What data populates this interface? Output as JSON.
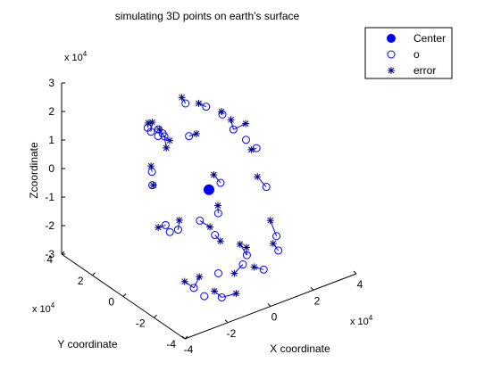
{
  "chart_data": {
    "type": "scatter",
    "projection": "3d",
    "title": "simulating 3D points on earth's surface",
    "xlabel": "X coordinate",
    "ylabel": "Y coordinate",
    "zlabel": "Zcoordinate",
    "axis_multiplier": {
      "x": "x 10",
      "y": "x 10",
      "z": "x 10",
      "exponent": "4"
    },
    "xticks": [
      "-4",
      "-2",
      "0",
      "2",
      "4"
    ],
    "yticks": [
      "4",
      "2",
      "0",
      "-2",
      "-4"
    ],
    "zticks": [
      "3",
      "2",
      "1",
      "0",
      "-1",
      "-2",
      "-3"
    ],
    "xlim": [
      -4,
      4
    ],
    "ylim": [
      -4,
      4
    ],
    "zlim": [
      -3,
      3
    ],
    "legend": {
      "placement": "top-right",
      "entries": [
        {
          "label": "Center",
          "marker": "filled-circle"
        },
        {
          "label": "o",
          "marker": "open-circle"
        },
        {
          "label": "error",
          "marker": "asterisk"
        }
      ]
    },
    "marker_color": "#0000ff",
    "error_color": "#000080",
    "series": [
      {
        "name": "Center",
        "points": [
          [
            0.0,
            0.0,
            -0.4
          ]
        ]
      },
      {
        "name": "o",
        "points": [
          [
            -2.0,
            1.2,
            1.9
          ],
          [
            -1.7,
            1.4,
            1.6
          ],
          [
            -1.3,
            1.2,
            1.5
          ],
          [
            -1.0,
            1.5,
            1.2
          ],
          [
            -2.3,
            0.5,
            0.7
          ],
          [
            -2.5,
            0.2,
            0.4
          ],
          [
            -1.8,
            0.8,
            1.7
          ],
          [
            -2.6,
            -0.8,
            -0.6
          ],
          [
            -2.4,
            -0.8,
            -0.9
          ],
          [
            -1.8,
            -0.5,
            -1.1
          ],
          [
            -1.0,
            -0.8,
            -0.9
          ],
          [
            -0.8,
            -1.5,
            -1.2
          ],
          [
            -2.0,
            -1.8,
            -2.6
          ],
          [
            -1.8,
            -2.2,
            -2.8
          ],
          [
            -1.2,
            -2.5,
            -2.9
          ],
          [
            -1.0,
            -2.0,
            -2.3
          ],
          [
            0.0,
            -2.2,
            -2.2
          ],
          [
            0.4,
            -1.9,
            -2.1
          ],
          [
            0.9,
            -2.3,
            -2.6
          ],
          [
            0.2,
            1.8,
            1.9
          ],
          [
            0.8,
            1.3,
            1.8
          ],
          [
            1.2,
            0.8,
            1.6
          ],
          [
            1.5,
            0.5,
            1.1
          ],
          [
            1.8,
            0.1,
            0.8
          ],
          [
            2.0,
            -0.3,
            0.6
          ],
          [
            2.1,
            -0.8,
            -0.6
          ],
          [
            2.0,
            -1.6,
            -2.0
          ],
          [
            1.8,
            -2.0,
            -2.3
          ],
          [
            0.0,
            -0.6,
            -1.0
          ],
          [
            0.9,
            0.5,
            -0.6
          ],
          [
            -0.5,
            0.6,
            1.4
          ],
          [
            -1.5,
            1.2,
            1.7
          ]
        ]
      },
      {
        "name": "error",
        "points": [
          [
            -1.9,
            1.3,
            2.0
          ],
          [
            -1.5,
            1.6,
            1.8
          ],
          [
            -1.1,
            1.7,
            1.4
          ],
          [
            -1.2,
            1.1,
            1.0
          ],
          [
            -2.2,
            0.7,
            0.8
          ],
          [
            -2.6,
            0.0,
            0.5
          ],
          [
            -2.8,
            -0.6,
            -0.7
          ],
          [
            -1.6,
            -0.3,
            -0.9
          ],
          [
            -0.6,
            -0.9,
            -1.2
          ],
          [
            -0.4,
            -1.3,
            -1.6
          ],
          [
            -1.6,
            -1.6,
            -2.4
          ],
          [
            -1.4,
            -2.3,
            -2.7
          ],
          [
            -0.6,
            -2.6,
            -2.9
          ],
          [
            -0.4,
            -2.2,
            -2.4
          ],
          [
            0.3,
            -1.6,
            -1.8
          ],
          [
            0.6,
            -1.6,
            -2.0
          ],
          [
            0.1,
            1.9,
            2.1
          ],
          [
            0.6,
            1.5,
            1.9
          ],
          [
            1.3,
            1.0,
            1.6
          ],
          [
            1.6,
            0.8,
            1.3
          ],
          [
            2.0,
            0.4,
            1.2
          ],
          [
            1.9,
            -0.1,
            0.5
          ],
          [
            1.9,
            -0.5,
            -0.3
          ],
          [
            2.0,
            -1.2,
            -1.6
          ],
          [
            1.7,
            -1.8,
            -2.1
          ],
          [
            0.8,
            0.8,
            -0.4
          ],
          [
            0.2,
            -0.3,
            -0.9
          ],
          [
            -0.3,
            0.4,
            1.5
          ],
          [
            -0.9,
            1.3,
            1.1
          ],
          [
            0.6,
            -2.1,
            -2.5
          ],
          [
            -2.0,
            -1.2,
            -2.6
          ]
        ]
      }
    ]
  }
}
